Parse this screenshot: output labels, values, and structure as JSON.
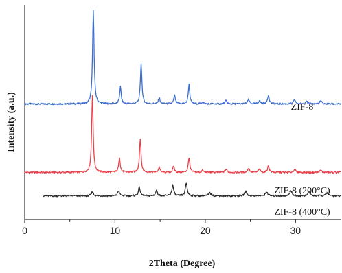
{
  "chart_data": {
    "type": "line",
    "title": "",
    "xlabel": "2Theta (Degree)",
    "ylabel": "Intensity (a.u.)",
    "xlim": [
      0,
      35
    ],
    "ylim": [
      0,
      100
    ],
    "xticks": [
      "0",
      "10",
      "20",
      "30"
    ],
    "xtick_values": [
      0,
      10,
      20,
      30
    ],
    "grid": false,
    "legend": "none",
    "series": [
      {
        "name": "ZIF-8",
        "color": "#3a6fcf",
        "baseline": 54,
        "peaks": [
          {
            "x": 7.6,
            "h": 44,
            "w": 0.1
          },
          {
            "x": 10.6,
            "h": 8,
            "w": 0.1
          },
          {
            "x": 12.9,
            "h": 19,
            "w": 0.1
          },
          {
            "x": 14.9,
            "h": 3,
            "w": 0.1
          },
          {
            "x": 16.6,
            "h": 4,
            "w": 0.1
          },
          {
            "x": 18.2,
            "h": 9,
            "w": 0.1
          },
          {
            "x": 19.7,
            "h": 1,
            "w": 0.1
          },
          {
            "x": 22.3,
            "h": 1.5,
            "w": 0.12
          },
          {
            "x": 24.8,
            "h": 2,
            "w": 0.12
          },
          {
            "x": 26.0,
            "h": 1.5,
            "w": 0.12
          },
          {
            "x": 27.0,
            "h": 4,
            "w": 0.12
          },
          {
            "x": 29.9,
            "h": 2,
            "w": 0.12
          },
          {
            "x": 31.2,
            "h": 1.5,
            "w": 0.12
          },
          {
            "x": 32.8,
            "h": 1.5,
            "w": 0.12
          }
        ]
      },
      {
        "name": "ZIF-8 (200°C)",
        "color": "#e8414a",
        "baseline": 22,
        "peaks": [
          {
            "x": 7.5,
            "h": 36,
            "w": 0.1
          },
          {
            "x": 10.5,
            "h": 7,
            "w": 0.1
          },
          {
            "x": 12.8,
            "h": 16,
            "w": 0.1
          },
          {
            "x": 14.9,
            "h": 2.5,
            "w": 0.1
          },
          {
            "x": 16.5,
            "h": 3,
            "w": 0.1
          },
          {
            "x": 18.2,
            "h": 7,
            "w": 0.1
          },
          {
            "x": 19.7,
            "h": 1,
            "w": 0.1
          },
          {
            "x": 22.3,
            "h": 1.5,
            "w": 0.12
          },
          {
            "x": 24.8,
            "h": 2,
            "w": 0.12
          },
          {
            "x": 26.0,
            "h": 1.5,
            "w": 0.12
          },
          {
            "x": 27.0,
            "h": 3,
            "w": 0.12
          },
          {
            "x": 29.9,
            "h": 1.5,
            "w": 0.12
          },
          {
            "x": 32.8,
            "h": 1,
            "w": 0.12
          }
        ]
      },
      {
        "name": "ZIF-8 (400°C)",
        "color": "#2b2b2b",
        "baseline": 11,
        "start": 2,
        "peaks": [
          {
            "x": 7.5,
            "h": 2,
            "w": 0.12
          },
          {
            "x": 10.4,
            "h": 2.5,
            "w": 0.12
          },
          {
            "x": 12.7,
            "h": 4,
            "w": 0.12
          },
          {
            "x": 14.6,
            "h": 2.5,
            "w": 0.12
          },
          {
            "x": 16.4,
            "h": 5,
            "w": 0.12
          },
          {
            "x": 17.9,
            "h": 6,
            "w": 0.12
          },
          {
            "x": 20.5,
            "h": 1.5,
            "w": 0.14
          },
          {
            "x": 24.5,
            "h": 2,
            "w": 0.14
          },
          {
            "x": 26.8,
            "h": 2,
            "w": 0.14
          },
          {
            "x": 29.5,
            "h": 2.5,
            "w": 0.14
          },
          {
            "x": 31.5,
            "h": 2,
            "w": 0.14
          },
          {
            "x": 33.5,
            "h": 1.5,
            "w": 0.14
          }
        ]
      }
    ]
  }
}
